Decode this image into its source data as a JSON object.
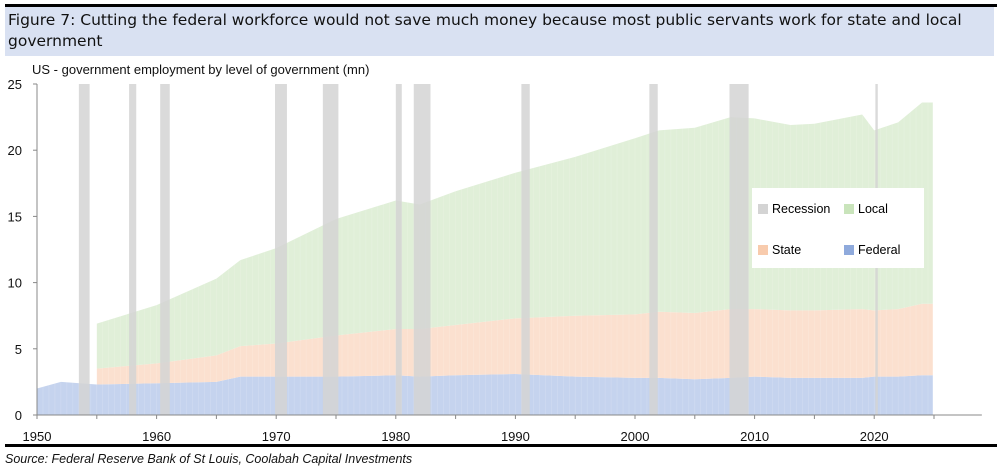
{
  "figure_title": "Figure 7: Cutting the federal workforce would not save much money because most public servants work for state and local government",
  "source": "Source: Federal Reserve Bank of St Louis, Coolabah Capital Investments",
  "chart_data": {
    "type": "area",
    "title": "US - government employment by level of government (mn)",
    "xlim": [
      1950,
      2029
    ],
    "ylim": [
      0,
      25
    ],
    "x_ticks": [
      "1950",
      "1960",
      "1970",
      "1980",
      "1990",
      "2000",
      "2010",
      "2020"
    ],
    "y_ticks": [
      "0",
      "5",
      "10",
      "15",
      "20",
      "25"
    ],
    "stacked": true,
    "x": [
      1950,
      1952,
      1955,
      1960,
      1965,
      1967,
      1970,
      1975,
      1980,
      1982,
      1985,
      1990,
      1995,
      2000,
      2002,
      2005,
      2008,
      2010,
      2013,
      2015,
      2019,
      2020,
      2022,
      2024
    ],
    "series": [
      {
        "name": "Federal",
        "color": "#c5d3ee",
        "values": [
          2.0,
          2.5,
          2.3,
          2.4,
          2.5,
          2.9,
          2.9,
          2.9,
          3.0,
          2.9,
          3.0,
          3.1,
          2.9,
          2.8,
          2.8,
          2.7,
          2.8,
          2.9,
          2.8,
          2.8,
          2.8,
          2.9,
          2.9,
          3.0
        ]
      },
      {
        "name": "State",
        "color": "#fbe0cf",
        "values": [
          null,
          null,
          1.2,
          1.5,
          2.0,
          2.3,
          2.5,
          3.1,
          3.5,
          3.6,
          3.8,
          4.2,
          4.6,
          4.8,
          5.0,
          5.0,
          5.2,
          5.1,
          5.1,
          5.1,
          5.2,
          5.0,
          5.1,
          5.4
        ]
      },
      {
        "name": "Local",
        "color": "#e0efd8",
        "values": [
          null,
          null,
          3.4,
          4.4,
          5.8,
          6.5,
          7.2,
          8.8,
          9.7,
          9.4,
          10.1,
          11.0,
          12.0,
          13.3,
          13.7,
          14.0,
          14.5,
          14.4,
          14.0,
          14.1,
          14.7,
          13.6,
          14.1,
          15.2
        ]
      }
    ],
    "recessions": {
      "name": "Recession",
      "color": "#d4d4d4",
      "periods": [
        [
          1953.5,
          1954.4
        ],
        [
          1957.7,
          1958.3
        ],
        [
          1960.3,
          1961.1
        ],
        [
          1969.9,
          1970.9
        ],
        [
          1973.9,
          1975.2
        ],
        [
          1980.0,
          1980.5
        ],
        [
          1981.5,
          1982.9
        ],
        [
          1990.5,
          1991.2
        ],
        [
          2001.2,
          2001.9
        ],
        [
          2007.9,
          2009.5
        ],
        [
          2020.1,
          2020.3
        ]
      ]
    },
    "legend": {
      "placement": "right",
      "entries": [
        "Recession",
        "Local",
        "State",
        "Federal"
      ]
    }
  }
}
